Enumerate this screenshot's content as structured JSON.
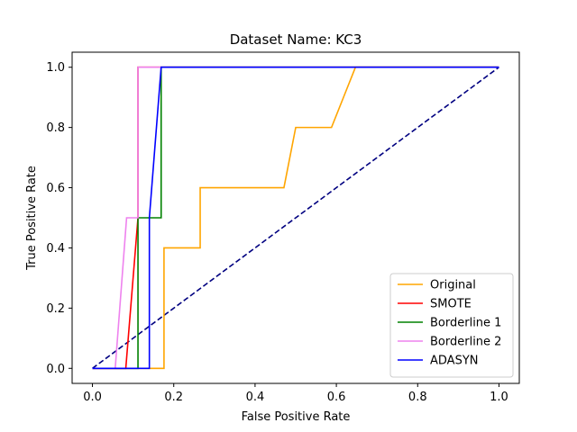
{
  "chart_data": {
    "type": "line",
    "title": "Dataset Name: KC3",
    "xlabel": "False Positive Rate",
    "ylabel": "True Positive Rate",
    "xlim": [
      -0.05,
      1.05
    ],
    "ylim": [
      -0.05,
      1.05
    ],
    "xticks": [
      0.0,
      0.2,
      0.4,
      0.6,
      0.8,
      1.0
    ],
    "yticks": [
      0.0,
      0.2,
      0.4,
      0.6,
      0.8,
      1.0
    ],
    "xtick_labels": [
      "0.0",
      "0.2",
      "0.4",
      "0.6",
      "0.8",
      "1.0"
    ],
    "ytick_labels": [
      "0.0",
      "0.2",
      "0.4",
      "0.6",
      "0.8",
      "1.0"
    ],
    "legend_position": "lower-right",
    "grid": false,
    "series": [
      {
        "name": "Original",
        "color": "#ffa500",
        "x": [
          0.0,
          0.176,
          0.176,
          0.265,
          0.265,
          0.471,
          0.5,
          0.5,
          0.588,
          0.647,
          1.0
        ],
        "y": [
          0.0,
          0.0,
          0.4,
          0.4,
          0.6,
          0.6,
          0.8,
          0.8,
          0.8,
          1.0,
          1.0
        ]
      },
      {
        "name": "SMOTE",
        "color": "#ff0000",
        "x": [
          0.0,
          0.082,
          0.112,
          0.112,
          1.0
        ],
        "y": [
          0.0,
          0.0,
          0.5,
          1.0,
          1.0
        ]
      },
      {
        "name": "Borderline 1",
        "color": "#008000",
        "x": [
          0.0,
          0.112,
          0.112,
          0.169,
          0.169,
          1.0
        ],
        "y": [
          0.0,
          0.0,
          0.5,
          0.5,
          1.0,
          1.0
        ]
      },
      {
        "name": "Borderline 2",
        "color": "#ee82ee",
        "x": [
          0.0,
          0.056,
          0.084,
          0.112,
          0.112,
          1.0
        ],
        "y": [
          0.0,
          0.0,
          0.5,
          0.5,
          1.0,
          1.0
        ]
      },
      {
        "name": "ADASYN",
        "color": "#0000ff",
        "x": [
          0.0,
          0.14,
          0.14,
          0.169,
          1.0
        ],
        "y": [
          0.0,
          0.0,
          0.5,
          1.0,
          1.0
        ]
      }
    ],
    "reference_line": {
      "color": "#000080",
      "style": "dashed",
      "x": [
        0.0,
        1.0
      ],
      "y": [
        0.0,
        1.0
      ]
    }
  }
}
